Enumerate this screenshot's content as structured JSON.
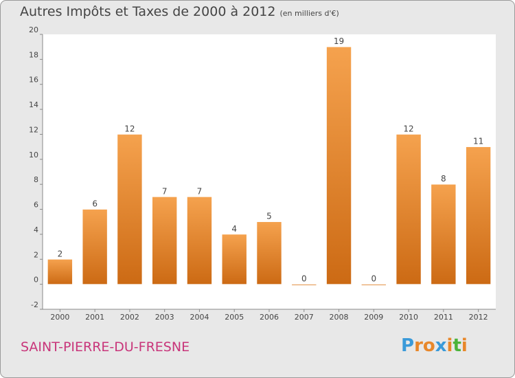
{
  "chart_data": {
    "type": "bar",
    "title": "Autres Impôts et Taxes de 2000 à 2012",
    "subtitle": "(en milliers d'€)",
    "categories": [
      "2000",
      "2001",
      "2002",
      "2003",
      "2004",
      "2005",
      "2006",
      "2007",
      "2008",
      "2009",
      "2010",
      "2011",
      "2012"
    ],
    "values": [
      2,
      6,
      12,
      7,
      7,
      4,
      5,
      0,
      19,
      0,
      12,
      8,
      11
    ],
    "data_labels": [
      "2",
      "6",
      "12",
      "7",
      "7",
      "4",
      "5",
      "0",
      "19",
      "0",
      "12",
      "8",
      "11"
    ],
    "ylim": [
      -2,
      20
    ],
    "yticks": [
      -2,
      0,
      2,
      4,
      6,
      8,
      10,
      12,
      14,
      16,
      18,
      20
    ],
    "grid": false,
    "legend": "none",
    "bar_color_light": "#f5a24e",
    "bar_color_dark": "#cc6a14",
    "plot_background": "#ffffff"
  },
  "footer": {
    "place_name": "SAINT-PIERRE-DU-FRESNE",
    "logo_letters": [
      "P",
      "r",
      "o",
      "x",
      "i",
      "t",
      "i"
    ],
    "logo_colors": [
      "#3a9ad9",
      "#e8872a",
      "#e8872a",
      "#3a9ad9",
      "#e8872a",
      "#4bb33a",
      "#e8872a"
    ]
  }
}
